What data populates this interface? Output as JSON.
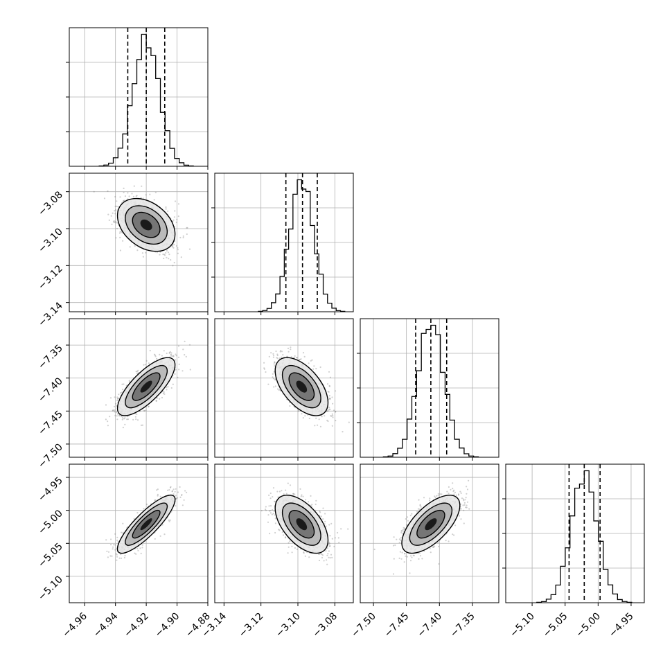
{
  "chart_data": {
    "type": "corner",
    "title": "",
    "grid": true,
    "parameters": [
      {
        "range": [
          -4.97,
          -4.88
        ],
        "ticks": [
          "−4.96",
          "−4.94",
          "−4.92",
          "−4.90",
          "−4.88"
        ],
        "tick_values": [
          -4.96,
          -4.94,
          -4.92,
          -4.9,
          -4.88
        ],
        "quantiles": [
          -4.932,
          -4.92,
          -4.908
        ],
        "mean": -4.92,
        "sd": 0.0085
      },
      {
        "range": [
          -3.145,
          -3.07
        ],
        "ticks": [
          "−3.14",
          "−3.12",
          "−3.10",
          "−3.08"
        ],
        "tick_values": [
          -3.14,
          -3.12,
          -3.1,
          -3.08
        ],
        "quantiles": [
          -3.1065,
          -3.0975,
          -3.0895
        ],
        "mean": -3.098,
        "sd": 0.0065
      },
      {
        "range": [
          -7.52,
          -7.31
        ],
        "ticks": [
          "−7.50",
          "−7.45",
          "−7.40",
          "−7.35"
        ],
        "tick_values": [
          -7.5,
          -7.45,
          -7.4,
          -7.35
        ],
        "quantiles": [
          -7.436,
          -7.413,
          -7.389
        ],
        "mean": -7.413,
        "sd": 0.02
      },
      {
        "range": [
          -5.14,
          -4.93
        ],
        "ticks": [
          "−5.10",
          "−5.05",
          "−5.00",
          "−4.95"
        ],
        "tick_values": [
          -5.1,
          -5.05,
          -5.0,
          -4.95
        ],
        "quantiles": [
          -5.044,
          -5.021,
          -4.997
        ],
        "mean": -5.021,
        "sd": 0.02
      }
    ],
    "correlations": [
      {
        "pair": [
          1,
          0
        ],
        "rho": -0.35
      },
      {
        "pair": [
          2,
          0
        ],
        "rho": 0.75
      },
      {
        "pair": [
          2,
          1
        ],
        "rho": -0.55
      },
      {
        "pair": [
          3,
          0
        ],
        "rho": 0.85
      },
      {
        "pair": [
          3,
          1
        ],
        "rho": -0.55
      },
      {
        "pair": [
          3,
          2
        ],
        "rho": 0.65
      }
    ],
    "histogram_bins": 20,
    "quantile_line_style": "dashed",
    "contour_levels": 3,
    "sample_points_per_panel": 1400
  }
}
